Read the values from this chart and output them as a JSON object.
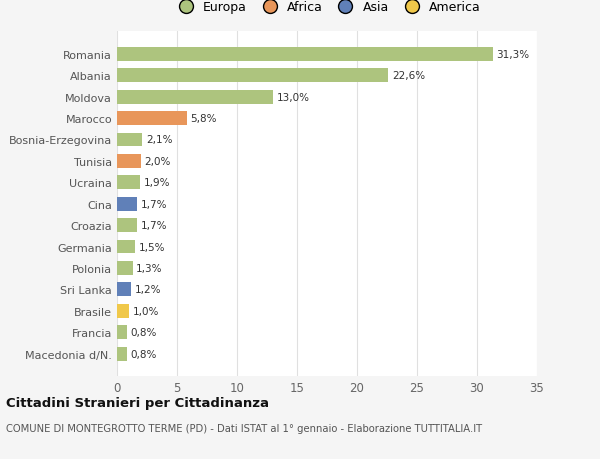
{
  "countries": [
    "Macedonia d/N.",
    "Francia",
    "Brasile",
    "Sri Lanka",
    "Polonia",
    "Germania",
    "Croazia",
    "Cina",
    "Ucraina",
    "Tunisia",
    "Bosnia-Erzegovina",
    "Marocco",
    "Moldova",
    "Albania",
    "Romania"
  ],
  "values": [
    0.8,
    0.8,
    1.0,
    1.2,
    1.3,
    1.5,
    1.7,
    1.7,
    1.9,
    2.0,
    2.1,
    5.8,
    13.0,
    22.6,
    31.3
  ],
  "labels": [
    "0,8%",
    "0,8%",
    "1,0%",
    "1,2%",
    "1,3%",
    "1,5%",
    "1,7%",
    "1,7%",
    "1,9%",
    "2,0%",
    "2,1%",
    "5,8%",
    "13,0%",
    "22,6%",
    "31,3%"
  ],
  "colors": [
    "#adc47e",
    "#adc47e",
    "#f0c84a",
    "#6080b8",
    "#adc47e",
    "#adc47e",
    "#adc47e",
    "#6080b8",
    "#adc47e",
    "#e8965a",
    "#adc47e",
    "#e8965a",
    "#adc47e",
    "#adc47e",
    "#adc47e"
  ],
  "legend_labels": [
    "Europa",
    "Africa",
    "Asia",
    "America"
  ],
  "legend_colors": [
    "#adc47e",
    "#e8965a",
    "#6080b8",
    "#f0c84a"
  ],
  "title": "Cittadini Stranieri per Cittadinanza",
  "subtitle": "COMUNE DI MONTEGROTTO TERME (PD) - Dati ISTAT al 1° gennaio - Elaborazione TUTTITALIA.IT",
  "xlim": [
    0,
    35
  ],
  "xticks": [
    0,
    5,
    10,
    15,
    20,
    25,
    30,
    35
  ],
  "background_color": "#f5f5f5",
  "bar_background": "#ffffff",
  "grid_color": "#e0e0e0"
}
